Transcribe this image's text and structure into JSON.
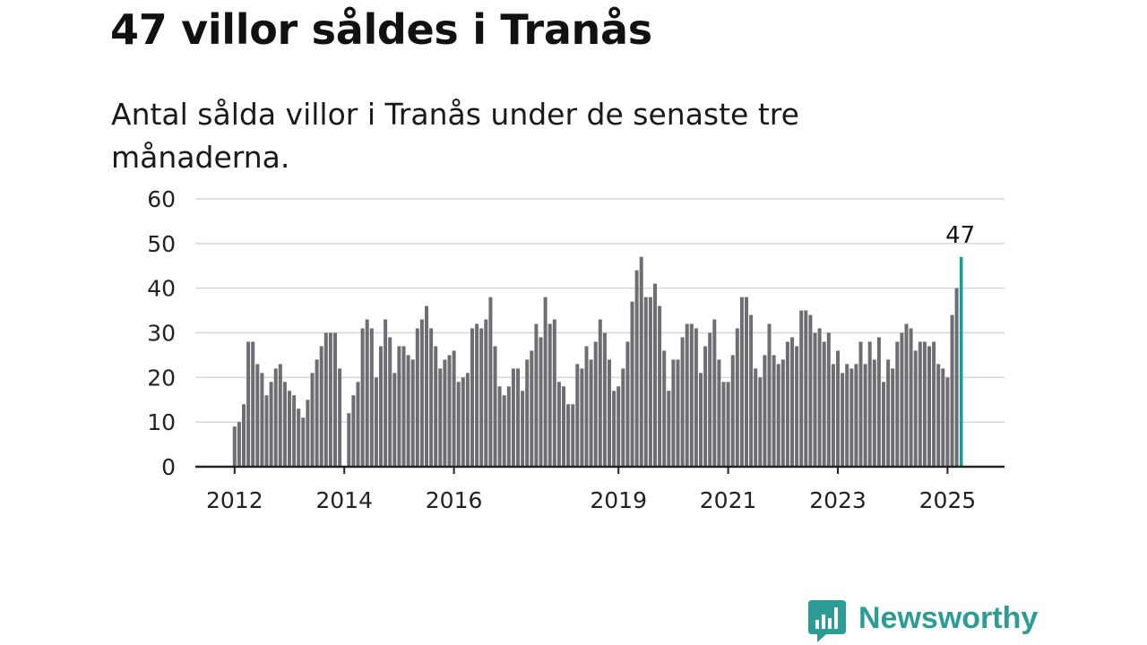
{
  "header": {
    "title": "47 villor såldes i Tranås",
    "subtitle": "Antal sålda villor i Tranås under de senaste tre månaderna."
  },
  "brand": {
    "name": "Newsworthy",
    "icon": "newsworthy-logo-icon",
    "color": "#2d9c94"
  },
  "colors": {
    "bar": "#6e6d72",
    "highlight": "#12a198",
    "grid": "#d6d6d6",
    "axis": "#222222",
    "text": "#222222"
  },
  "chart_data": {
    "type": "bar",
    "title": "47 villor såldes i Tranås",
    "subtitle": "Antal sålda villor i Tranås under de senaste tre månaderna.",
    "xlabel": "",
    "ylabel": "",
    "ylim": [
      0,
      60
    ],
    "yticks": [
      0,
      10,
      20,
      30,
      40,
      50,
      60
    ],
    "grid": true,
    "x_tick_labels": [
      "2012",
      "2014",
      "2016",
      "2019",
      "2021",
      "2023",
      "2025"
    ],
    "start": "2012-01",
    "frequency": "monthly",
    "values": [
      9,
      10,
      14,
      28,
      28,
      23,
      21,
      16,
      19,
      22,
      23,
      19,
      17,
      16,
      13,
      11,
      15,
      21,
      24,
      27,
      30,
      30,
      30,
      22,
      null,
      12,
      16,
      19,
      31,
      33,
      31,
      20,
      27,
      33,
      29,
      21,
      27,
      27,
      25,
      24,
      31,
      33,
      36,
      31,
      27,
      22,
      24,
      25,
      26,
      19,
      20,
      21,
      31,
      32,
      31,
      33,
      38,
      27,
      18,
      16,
      18,
      22,
      22,
      17,
      24,
      26,
      32,
      29,
      38,
      32,
      33,
      19,
      18,
      14,
      14,
      23,
      22,
      27,
      24,
      28,
      33,
      30,
      24,
      17,
      18,
      22,
      28,
      37,
      44,
      47,
      38,
      38,
      41,
      36,
      26,
      17,
      24,
      24,
      29,
      32,
      32,
      31,
      21,
      27,
      30,
      33,
      24,
      19,
      19,
      25,
      31,
      38,
      38,
      34,
      22,
      20,
      25,
      32,
      25,
      23,
      24,
      28,
      29,
      27,
      35,
      35,
      34,
      30,
      31,
      28,
      30,
      23,
      26,
      21,
      23,
      22,
      23,
      28,
      23,
      28,
      24,
      29,
      19,
      24,
      22,
      28,
      30,
      32,
      31,
      26,
      28,
      28,
      27,
      28,
      23,
      22,
      20,
      34,
      40,
      47
    ],
    "highlight": {
      "label": "47",
      "value": 47,
      "index": 159
    }
  }
}
